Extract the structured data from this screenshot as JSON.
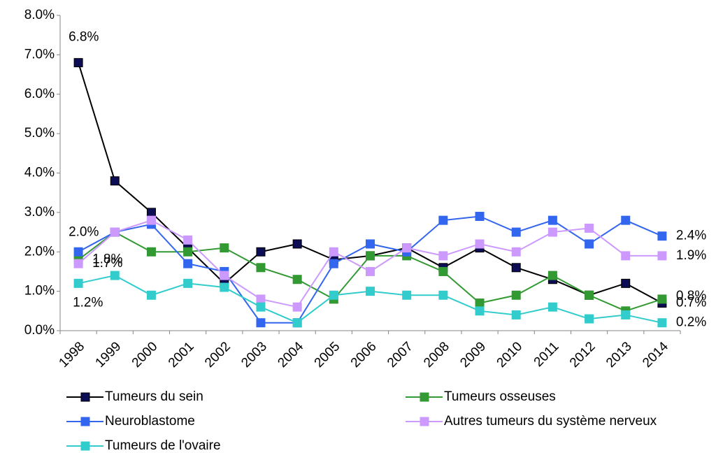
{
  "chart_data": {
    "type": "line",
    "categories": [
      "1998",
      "1999",
      "2000",
      "2001",
      "2002",
      "2003",
      "2004",
      "2005",
      "2006",
      "2007",
      "2008",
      "2009",
      "2010",
      "2011",
      "2012",
      "2013",
      "2014"
    ],
    "ylim": [
      0,
      8
    ],
    "yticks": [
      {
        "value": 0,
        "label": "0.0%"
      },
      {
        "value": 1,
        "label": "1.0%"
      },
      {
        "value": 2,
        "label": "2.0%"
      },
      {
        "value": 3,
        "label": "3.0%"
      },
      {
        "value": 4,
        "label": "4.0%"
      },
      {
        "value": 5,
        "label": "5.0%"
      },
      {
        "value": 6,
        "label": "6.0%"
      },
      {
        "value": 7,
        "label": "7.0%"
      },
      {
        "value": 8,
        "label": "8.0%"
      }
    ],
    "series": [
      {
        "name": "Tumeurs du sein",
        "color": "#0d0d55",
        "values": [
          6.8,
          3.8,
          3.0,
          2.1,
          1.2,
          2.0,
          2.2,
          1.8,
          1.9,
          2.1,
          1.6,
          2.1,
          1.6,
          1.3,
          0.9,
          1.2,
          0.7
        ],
        "value_labels": [
          "6.8%",
          null,
          null,
          null,
          null,
          null,
          null,
          null,
          null,
          null,
          null,
          null,
          null,
          null,
          null,
          null,
          "0.7%"
        ]
      },
      {
        "name": "Tumeurs osseuses",
        "color": "#339933",
        "values": [
          1.8,
          2.5,
          2.0,
          2.0,
          2.1,
          1.6,
          1.3,
          0.8,
          1.9,
          1.9,
          1.5,
          0.7,
          0.9,
          1.4,
          0.9,
          0.5,
          0.8
        ],
        "value_labels": [
          "1.8%",
          null,
          null,
          null,
          null,
          null,
          null,
          null,
          null,
          null,
          null,
          null,
          null,
          null,
          null,
          null,
          "0.8%"
        ]
      },
      {
        "name": "Neuroblastome",
        "color": "#3366ee",
        "values": [
          2.0,
          2.5,
          2.7,
          1.7,
          1.5,
          0.2,
          0.2,
          1.7,
          2.2,
          2.0,
          2.8,
          2.9,
          2.5,
          2.8,
          2.2,
          2.8,
          2.4
        ],
        "value_labels": [
          "2.0%",
          null,
          null,
          null,
          null,
          null,
          null,
          null,
          null,
          null,
          null,
          null,
          null,
          null,
          null,
          null,
          "2.4%"
        ]
      },
      {
        "name": "Autres tumeurs du système nerveux",
        "color": "#cc99ff",
        "values": [
          1.7,
          2.5,
          2.8,
          2.3,
          1.4,
          0.8,
          0.6,
          2.0,
          1.5,
          2.1,
          1.9,
          2.2,
          2.0,
          2.5,
          2.6,
          1.9,
          1.9
        ],
        "value_labels": [
          "1.7%",
          null,
          null,
          null,
          null,
          null,
          null,
          null,
          null,
          null,
          null,
          null,
          null,
          null,
          null,
          null,
          "1.9%"
        ]
      },
      {
        "name": "Tumeurs de l'ovaire",
        "color": "#33cccc",
        "values": [
          1.2,
          1.4,
          0.9,
          1.2,
          1.1,
          0.6,
          0.2,
          0.9,
          1.0,
          0.9,
          0.9,
          0.5,
          0.4,
          0.6,
          0.3,
          0.4,
          0.2
        ],
        "value_labels": [
          "1.2%",
          null,
          null,
          null,
          null,
          null,
          null,
          null,
          null,
          null,
          null,
          null,
          null,
          null,
          null,
          null,
          "0.2%"
        ]
      }
    ]
  }
}
